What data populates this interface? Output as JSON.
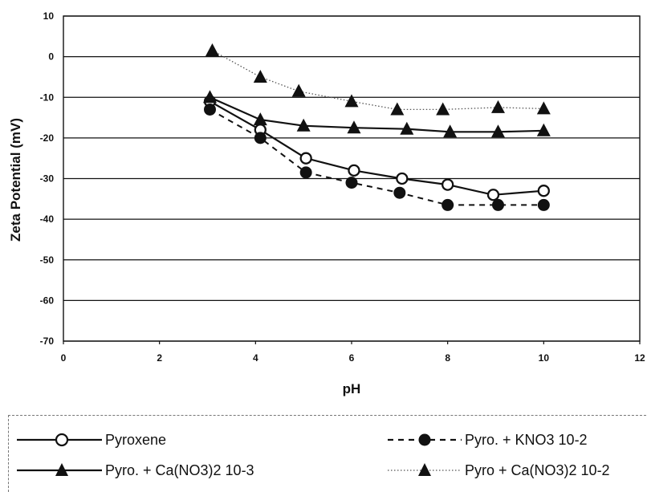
{
  "chart_data": {
    "type": "line",
    "xlabel": "pH",
    "ylabel": "Zeta Potential  (mV)",
    "xlim": [
      0,
      12
    ],
    "ylim": [
      -70,
      10
    ],
    "xticks": [
      "0",
      "2",
      "4",
      "6",
      "8",
      "10",
      "12"
    ],
    "yticks": [
      "10",
      "0",
      "-10",
      "-20",
      "-30",
      "-40",
      "-50",
      "-60",
      "-70"
    ],
    "grid": "horizontal",
    "legend_position": "bottom",
    "series": [
      {
        "name": "Pyroxene",
        "marker": "open-circle",
        "line": "solid",
        "color": "#111111",
        "points": [
          [
            3.05,
            -11
          ],
          [
            4.1,
            -18
          ],
          [
            5.05,
            -25
          ],
          [
            6.05,
            -28
          ],
          [
            7.05,
            -30
          ],
          [
            8.0,
            -31.5
          ],
          [
            8.95,
            -34
          ],
          [
            10.0,
            -33
          ]
        ]
      },
      {
        "name": "Pyro. + KNO3 10-2",
        "marker": "filled-circle",
        "line": "dashed",
        "color": "#111111",
        "points": [
          [
            3.05,
            -13
          ],
          [
            4.1,
            -20
          ],
          [
            5.05,
            -28.5
          ],
          [
            6.0,
            -31
          ],
          [
            7.0,
            -33.5
          ],
          [
            8.0,
            -36.5
          ],
          [
            9.05,
            -36.5
          ],
          [
            10.0,
            -36.5
          ]
        ]
      },
      {
        "name": "Pyro. + Ca(NO3)2 10-3",
        "marker": "filled-triangle",
        "line": "solid",
        "color": "#111111",
        "points": [
          [
            3.05,
            -10
          ],
          [
            4.1,
            -15.5
          ],
          [
            5.0,
            -17
          ],
          [
            6.05,
            -17.5
          ],
          [
            7.15,
            -17.8
          ],
          [
            8.05,
            -18.5
          ],
          [
            9.05,
            -18.5
          ],
          [
            10.0,
            -18.2
          ]
        ]
      },
      {
        "name": "Pyro + Ca(NO3)2 10-2",
        "marker": "filled-triangle",
        "line": "dotted",
        "color": "#555555",
        "points": [
          [
            3.1,
            1.5
          ],
          [
            4.1,
            -5
          ],
          [
            4.9,
            -8.5
          ],
          [
            6.0,
            -11
          ],
          [
            6.95,
            -13
          ],
          [
            7.9,
            -13
          ],
          [
            9.05,
            -12.5
          ],
          [
            10.0,
            -12.8
          ]
        ]
      }
    ]
  }
}
